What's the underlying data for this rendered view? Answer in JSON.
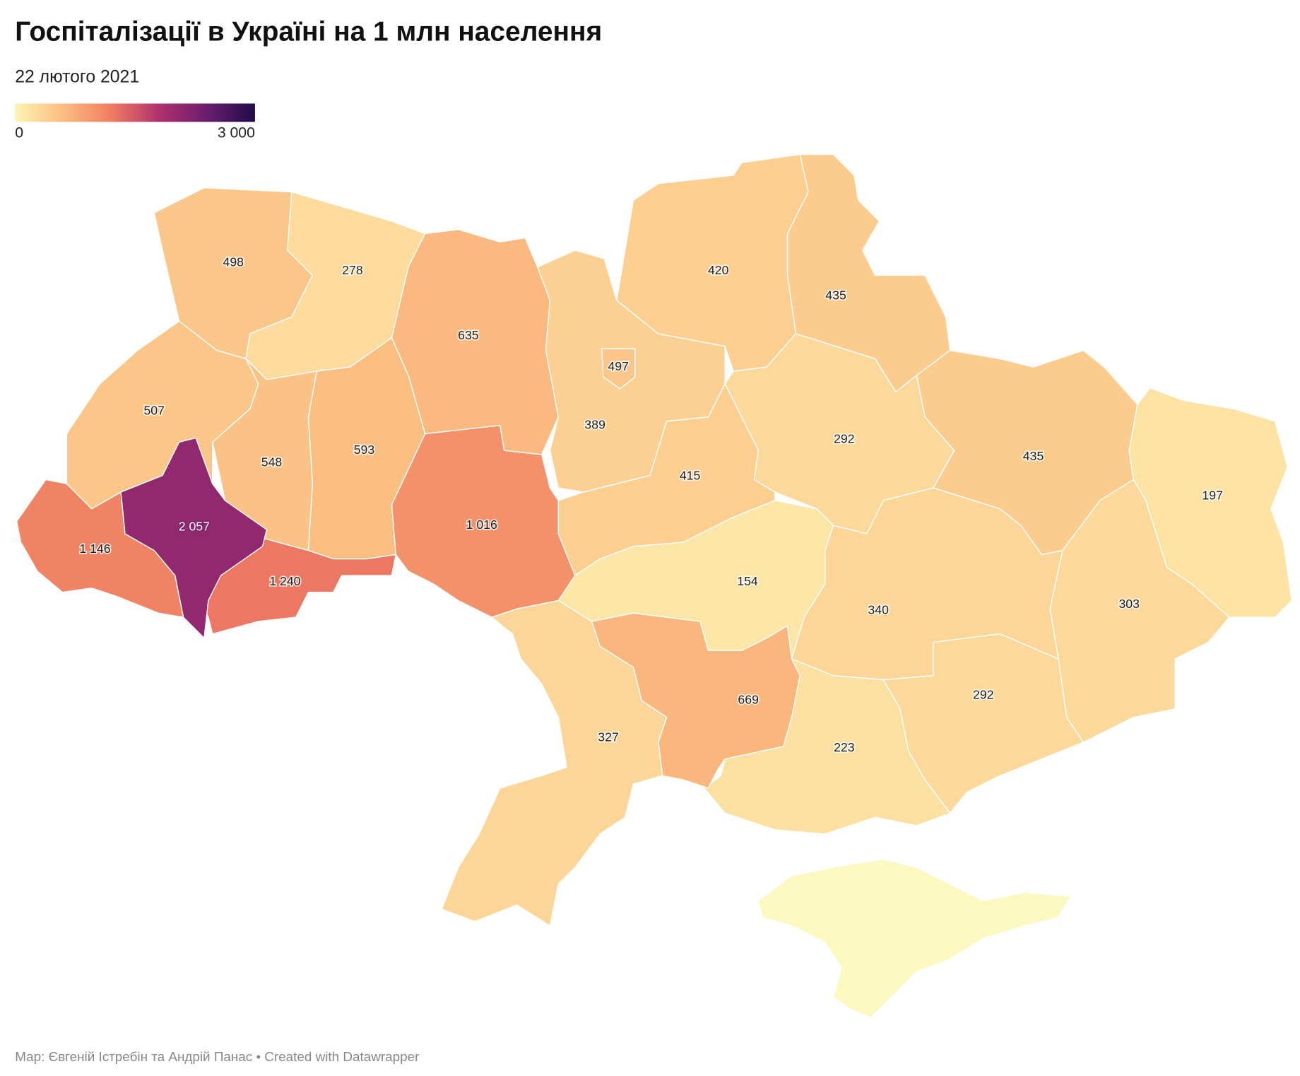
{
  "chart_data": {
    "type": "choropleth",
    "title": "Госпіталізації в Україні на 1 млн населення",
    "subtitle": "22 лютого 2021",
    "source": "Мар: Євгеній Істребін та Андрій Панас • Created with Datawrapper",
    "colorscale": [
      "#fdf4b4",
      "#fbbd80",
      "#f07d62",
      "#b0316d",
      "#6a1d6f",
      "#1f0c48"
    ],
    "scale_range": [
      0,
      3000
    ],
    "legend_ticks": [
      0,
      {
        "value": 3000,
        "label": "3 000"
      }
    ],
    "values": [
      498,
      278,
      635,
      389,
      497,
      420,
      435,
      292,
      435,
      197,
      303,
      340,
      292,
      223,
      669,
      154,
      415,
      327,
      1016,
      593,
      548,
      507,
      1240,
      2057,
      1146
    ],
    "value_labels": [
      "498",
      "278",
      "635",
      "389",
      "497",
      "420",
      "435",
      "292",
      "435",
      "197",
      "303",
      "340",
      "292",
      "223",
      "669",
      "154",
      "415",
      "327",
      "1 016",
      "593",
      "548",
      "507",
      "1 240",
      "2 057",
      "1 146"
    ]
  }
}
